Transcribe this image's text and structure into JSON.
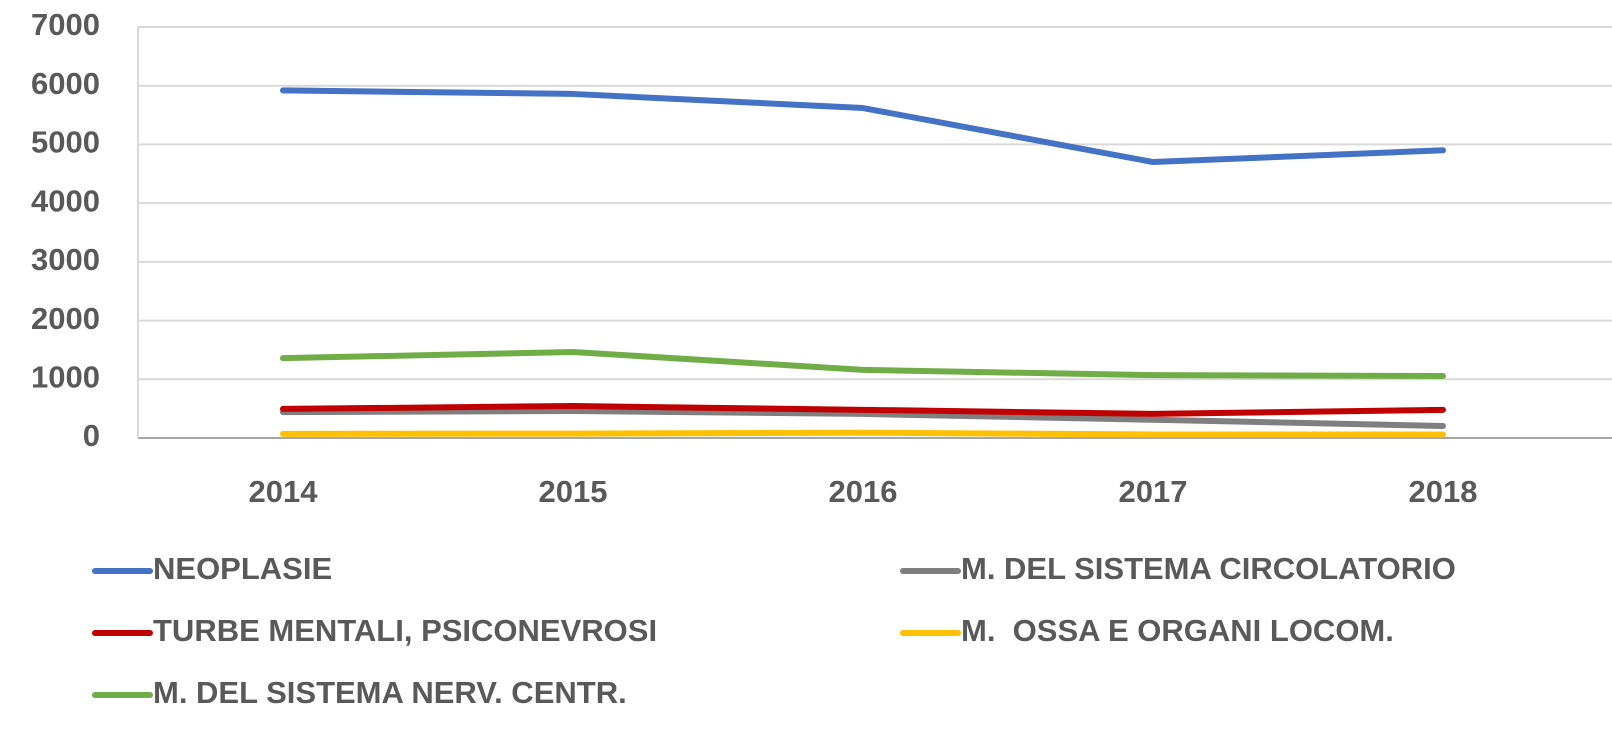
{
  "chart_data": {
    "type": "line",
    "categories": [
      "2014",
      "2015",
      "2016",
      "2017",
      "2018"
    ],
    "series": [
      {
        "name": "NEOPLASIE",
        "color": "#4472c4",
        "values": [
          5920,
          5860,
          5620,
          4700,
          4900
        ]
      },
      {
        "name": "M. DEL SISTEMA CIRCOLATORIO",
        "color": "#7f7f7f",
        "values": [
          440,
          460,
          410,
          310,
          205
        ]
      },
      {
        "name": "TURBE MENTALI, PSICONEVROSI",
        "color": "#c00000",
        "values": [
          495,
          545,
          480,
          410,
          480
        ]
      },
      {
        "name": "M.  OSSA E ORGANI LOCOM.",
        "color": "#ffc000",
        "values": [
          70,
          75,
          90,
          60,
          60
        ]
      },
      {
        "name": "M. DEL SISTEMA NERV. CENTR.",
        "color": "#70ad47",
        "values": [
          1360,
          1465,
          1160,
          1070,
          1055
        ]
      }
    ],
    "ylim": [
      0,
      7000
    ],
    "yticks": [
      0,
      1000,
      2000,
      3000,
      4000,
      5000,
      6000,
      7000
    ],
    "grid": true
  }
}
